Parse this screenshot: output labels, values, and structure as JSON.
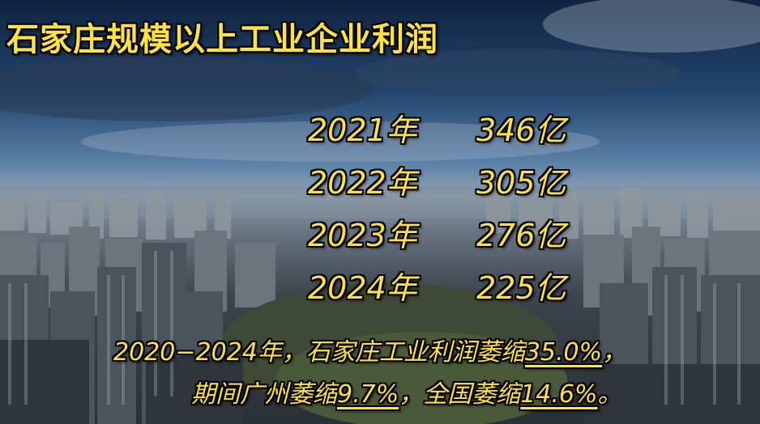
{
  "title": "石家庄规模以上工业企业利润",
  "rows": [
    {
      "year": "2021年",
      "value": "346亿"
    },
    {
      "year": "2022年",
      "value": "305亿"
    },
    {
      "year": "2023年",
      "value": "276亿"
    },
    {
      "year": "2024年",
      "value": "225亿"
    }
  ],
  "note": {
    "line1_prefix": "2020−2024年，石家庄工业利润萎缩",
    "line1_pct": "35.0%",
    "line1_suffix": "，",
    "line2_prefix": "期间广州萎缩",
    "line2_pct1": "9.7%",
    "line2_mid": "，全国萎缩",
    "line2_pct2": "14.6%",
    "line2_suffix": "。"
  },
  "colors": {
    "text": "#ffe33a",
    "outline": "#000000"
  }
}
